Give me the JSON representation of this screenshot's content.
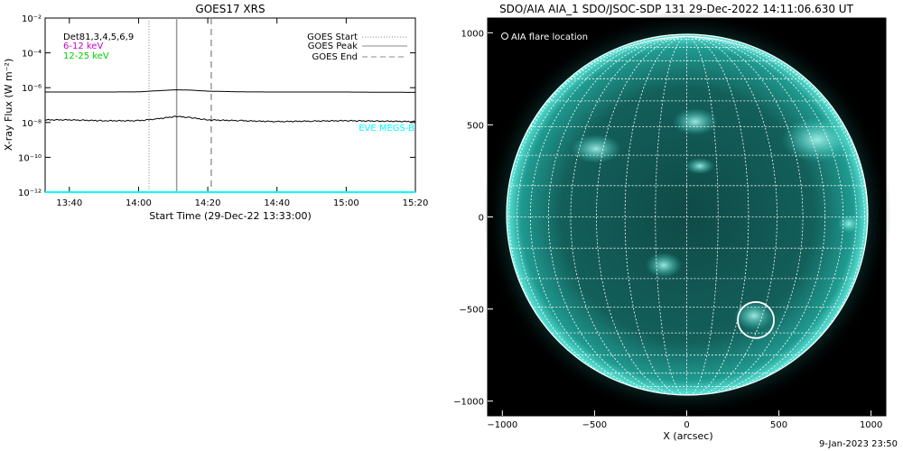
{
  "chart_data": [
    {
      "type": "line",
      "title": "GOES17 XRS",
      "xlabel": "Start Time (29-Dec-22 13:33:00)",
      "ylabel": "X-ray Flux (W m⁻²)",
      "x_ticks": [
        "13:40",
        "14:00",
        "14:20",
        "14:40",
        "15:00",
        "15:20"
      ],
      "y_ticks": [
        "10⁻¹²",
        "10⁻¹⁰",
        "10⁻⁸",
        "10⁻⁶",
        "10⁻⁴",
        "10⁻²"
      ],
      "y_log_range": [
        -12,
        -2
      ],
      "x_range": [
        "13:33",
        "15:20"
      ],
      "grid": false,
      "series": [
        {
          "name": "",
          "x": [
            "13:33",
            "13:40",
            "13:50",
            "14:00",
            "14:05",
            "14:11",
            "14:15",
            "14:20",
            "14:30",
            "14:40",
            "14:50",
            "15:00",
            "15:10",
            "15:20"
          ],
          "log_flux": [
            -6.25,
            -6.25,
            -6.25,
            -6.24,
            -6.18,
            -6.12,
            -6.14,
            -6.2,
            -6.24,
            -6.25,
            -6.25,
            -6.25,
            -6.26,
            -6.27
          ],
          "color": "#000000"
        },
        {
          "name": "",
          "x": [
            "13:33",
            "13:40",
            "13:50",
            "14:00",
            "14:05",
            "14:11",
            "14:15",
            "14:20",
            "14:30",
            "14:40",
            "14:50",
            "15:00",
            "15:10",
            "15:20"
          ],
          "log_flux": [
            -7.85,
            -7.85,
            -7.9,
            -7.9,
            -7.8,
            -7.65,
            -7.72,
            -7.85,
            -7.9,
            -7.95,
            -7.92,
            -7.9,
            -7.92,
            -7.95
          ],
          "color": "#000000"
        },
        {
          "name": "EVE MEGS-B",
          "x": [
            "13:33",
            "15:20"
          ],
          "log_flux": [
            -12,
            -12
          ],
          "color": "#00ffff"
        }
      ],
      "events": {
        "goes_start": "14:03",
        "goes_peak": "14:11",
        "goes_end": "14:21"
      },
      "legend_left": [
        "Det81,3,4,5,6,9",
        "6-12 keV",
        "12-25 keV"
      ],
      "legend_left_colors": [
        "#000000",
        "#cc00cc",
        "#00cc00"
      ],
      "legend_right": [
        "GOES Start",
        "GOES Peak",
        "GOES End"
      ],
      "eve_label": "EVE MEGS-B",
      "eve_color": "#00ffff"
    },
    {
      "type": "scatter",
      "title": "SDO/AIA AIA_1 SDO/JSOC-SDP 131 29-Dec-2022 14:11:06.630 UT",
      "xlabel": "X (arcsec)",
      "ylabel": "",
      "x_ticks": [
        "−1000",
        "−500",
        "0",
        "500",
        "1000"
      ],
      "y_ticks": [
        "1000",
        "500",
        "0",
        "−500",
        "−1000"
      ],
      "x_range": [
        -1080,
        1080
      ],
      "y_range": [
        -1080,
        1080
      ],
      "legend": "AIA flare location",
      "flare_location": {
        "x": 375,
        "y": -560
      },
      "disk_color": "#2fd6c8",
      "background_color": "#000000"
    }
  ],
  "footer": "9-Jan-2023 23:50"
}
